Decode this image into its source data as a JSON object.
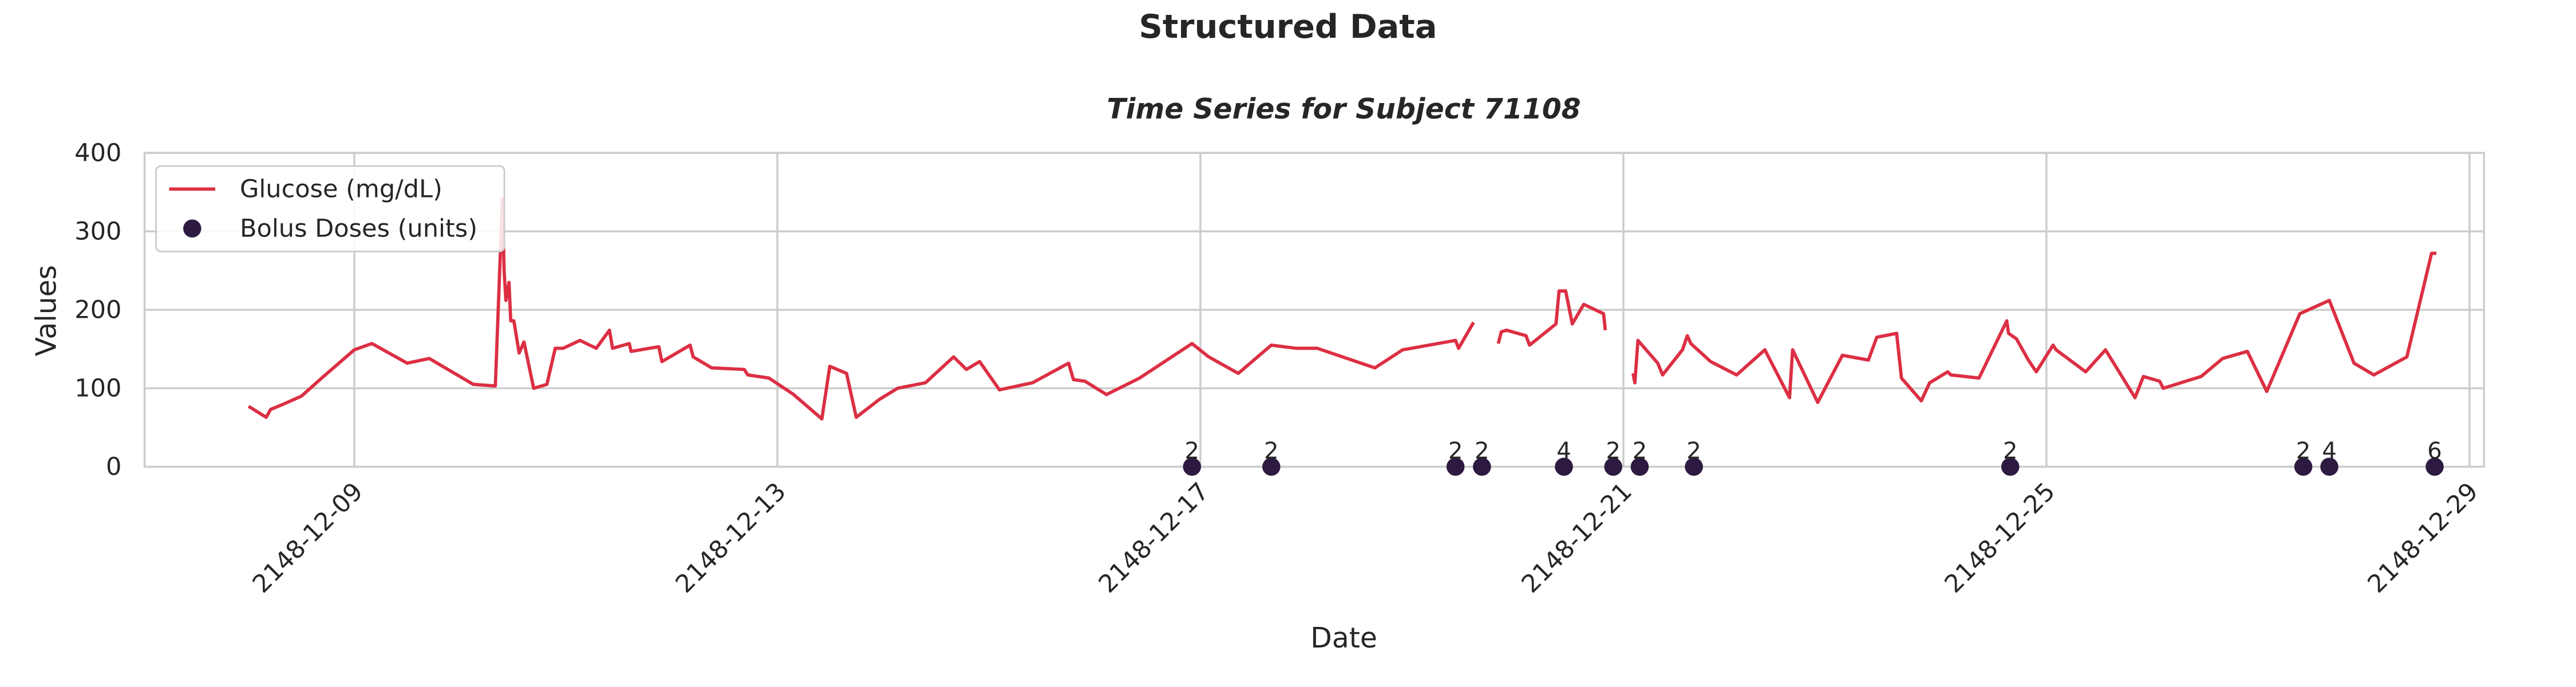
{
  "chart_data": {
    "type": "line",
    "title": "Structured Data",
    "subtitle": "Time Series for Subject 71108",
    "x_label": "Date",
    "y_label": "Values",
    "xlim": [
      "2148-12-07 00:24",
      "2148-12-29 03:18"
    ],
    "xticks": [
      "2148-12-09",
      "2148-12-13",
      "2148-12-17",
      "2148-12-21",
      "2148-12-25",
      "2148-12-29"
    ],
    "ylim": [
      0,
      400
    ],
    "yticks": [
      0,
      100,
      200,
      300,
      400
    ],
    "grid": true,
    "legend": "upper left",
    "series": [
      {
        "name": "Glucose (mg/dL)",
        "type": "line",
        "color": "#dc2f43",
        "x": [
          "2148-12-08 00:00",
          "2148-12-08 04:00",
          "2148-12-08 05:00",
          "2148-12-08 08:00",
          "2148-12-08 12:00",
          "2148-12-08 17:00",
          "2148-12-09 00:00",
          "2148-12-09 04:00",
          "2148-12-09 12:00",
          "2148-12-09 17:00",
          "2148-12-10 03:00",
          "2148-12-10 08:00",
          "2148-12-10 09:36",
          "2148-12-10 10:00",
          "2148-12-10 10:24",
          "2148-12-10 11:06",
          "2148-12-10 11:30",
          "2148-12-10 12:12",
          "2148-12-10 13:24",
          "2148-12-10 14:30",
          "2148-12-10 16:42",
          "2148-12-10 19:42",
          "2148-12-10 21:36",
          "2148-12-10 23:24",
          "2148-12-11 03:12",
          "2148-12-11 06:54",
          "2148-12-11 09:54",
          "2148-12-11 10:36",
          "2148-12-11 14:24",
          "2148-12-11 14:48",
          "2148-12-11 21:06",
          "2148-12-11 21:48",
          "2148-12-12 04:12",
          "2148-12-12 04:54",
          "2148-12-12 09:06",
          "2148-12-12 16:30",
          "2148-12-12 17:18",
          "2148-12-12 22:06",
          "2148-12-13 03:42",
          "2148-12-13 10:06",
          "2148-12-13 11:54",
          "2148-12-13 15:42",
          "2148-12-13 17:54",
          "2148-12-13 23:12",
          "2148-12-14 03:18",
          "2148-12-14 09:36",
          "2148-12-14 16:00",
          "2148-12-14 18:54",
          "2148-12-14 21:54",
          "2148-12-15 02:24",
          "2148-12-15 09:54",
          "2148-12-15 18:06",
          "2148-12-15 19:12",
          "2148-12-15 21:48",
          "2148-12-16 02:42",
          "2148-12-16 10:12",
          "2148-12-16 22:06",
          "2148-12-17 01:54",
          "2148-12-17 08:36",
          "2148-12-17 16:06",
          "2148-12-17 21:42",
          "2148-12-18 02:30",
          "2148-12-18 15:36",
          "2148-12-18 21:54",
          "2148-12-19 09:54",
          "2148-12-19 10:36",
          "2148-12-19 14:00",
          null,
          "2148-12-19 19:36",
          "2148-12-19 20:18",
          "2148-12-19 21:30",
          "2148-12-20 01:54",
          "2148-12-20 02:42",
          "2148-12-20 08:42",
          "2148-12-20 09:24",
          "2148-12-20 10:54",
          "2148-12-20 12:24",
          "2148-12-20 15:00",
          "2148-12-20 19:30",
          "2148-12-20 19:54",
          null,
          "2148-12-21 02:12",
          "2148-12-21 02:36",
          "2148-12-21 03:18",
          "2148-12-21 07:48",
          "2148-12-21 08:54",
          "2148-12-21 13:24",
          "2148-12-21 14:30",
          "2148-12-21 15:18",
          "2148-12-21 19:48",
          "2148-12-22 01:42",
          "2148-12-22 08:06",
          "2148-12-22 13:42",
          "2148-12-22 14:24",
          "2148-12-22 20:06",
          "2148-12-23 01:42",
          "2148-12-23 07:36",
          "2148-12-23 09:30",
          "2148-12-23 14:00",
          "2148-12-23 15:06",
          "2148-12-23 19:36",
          "2148-12-23 21:30",
          "2148-12-24 01:36",
          "2148-12-24 02:18",
          "2148-12-24 08:42",
          "2148-12-24 15:00",
          "2148-12-24 15:24",
          "2148-12-24 17:12",
          "2148-12-24 19:54",
          "2148-12-24 21:42",
          "2148-12-25 01:30",
          "2148-12-25 02:12",
          "2148-12-25 08:54",
          "2148-12-25 13:24",
          "2148-12-25 20:06",
          "2148-12-25 22:00",
          "2148-12-26 01:42",
          "2148-12-26 02:30",
          "2148-12-26 11:06",
          "2148-12-26 16:00",
          "2148-12-26 21:36",
          "2148-12-27 02:00",
          "2148-12-27 09:30",
          "2148-12-27 16:12",
          "2148-12-27 21:48",
          "2148-12-28 02:18",
          "2148-12-28 09:48",
          "2148-12-28 15:24",
          "2148-12-28 16:30"
        ],
        "values": [
          77,
          63,
          73,
          80,
          90,
          115,
          149,
          157,
          132,
          138,
          105,
          103,
          341,
          249,
          212,
          235,
          186,
          186,
          145,
          159,
          100,
          105,
          151,
          151,
          161,
          151,
          174,
          151,
          157,
          147,
          153,
          134,
          155,
          140,
          126,
          124,
          117,
          113,
          92,
          61,
          128,
          119,
          63,
          86,
          100,
          107,
          140,
          124,
          134,
          98,
          107,
          132,
          111,
          109,
          92,
          113,
          157,
          140,
          119,
          155,
          151,
          151,
          126,
          149,
          161,
          151,
          184,
          null,
          157,
          172,
          174,
          167,
          155,
          182,
          224,
          224,
          182,
          207,
          195,
          174,
          null,
          119,
          107,
          161,
          132,
          117,
          149,
          167,
          157,
          134,
          117,
          149,
          88,
          149,
          82,
          142,
          136,
          165,
          170,
          113,
          84,
          107,
          121,
          117,
          113,
          186,
          170,
          163,
          136,
          121,
          155,
          149,
          121,
          149,
          88,
          115,
          109,
          100,
          115,
          138,
          147,
          96,
          195,
          212,
          132,
          117,
          140,
          272,
          272
        ]
      },
      {
        "name": "Bolus Doses (units)",
        "type": "scatter",
        "color": "#2d1a40",
        "x": [
          "2148-12-16 22:06",
          "2148-12-17 16:06",
          "2148-12-19 09:54",
          "2148-12-19 15:54",
          "2148-12-20 10:30",
          "2148-12-20 21:42",
          "2148-12-21 03:42",
          "2148-12-21 16:00",
          "2148-12-24 15:48",
          "2148-12-27 10:18",
          "2148-12-27 16:12",
          "2148-12-28 16:06"
        ],
        "values": [
          0,
          0,
          0,
          0,
          0,
          0,
          0,
          0,
          0,
          0,
          0,
          0
        ],
        "doses": [
          2,
          2,
          2,
          2,
          4,
          2,
          2,
          2,
          2,
          2,
          4,
          6
        ]
      }
    ]
  }
}
